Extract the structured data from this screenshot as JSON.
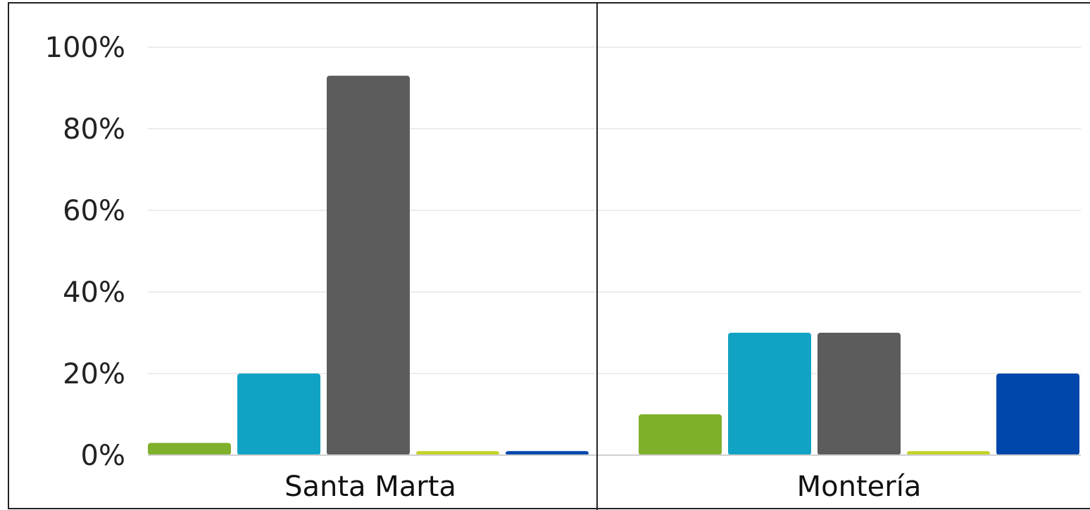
{
  "chart_data": {
    "type": "bar",
    "title": "",
    "xlabel": "",
    "ylabel": "",
    "ylim": [
      0,
      100
    ],
    "yticks": [
      0,
      20,
      40,
      60,
      80,
      100
    ],
    "ytick_labels": [
      "0%",
      "20%",
      "40%",
      "60%",
      "80%",
      "100%"
    ],
    "grid": true,
    "legend": "none",
    "categories": [
      "Santa Marta",
      "Montería"
    ],
    "series": [
      {
        "color": "#7fb02a",
        "values": [
          3,
          10
        ]
      },
      {
        "color": "#12a3c4",
        "values": [
          20,
          30
        ]
      },
      {
        "color": "#5c5c5c",
        "values": [
          93,
          30
        ]
      },
      {
        "color": "#c5d22a",
        "values": [
          1,
          1
        ]
      },
      {
        "color": "#0047ab",
        "values": [
          1,
          20
        ]
      }
    ]
  }
}
